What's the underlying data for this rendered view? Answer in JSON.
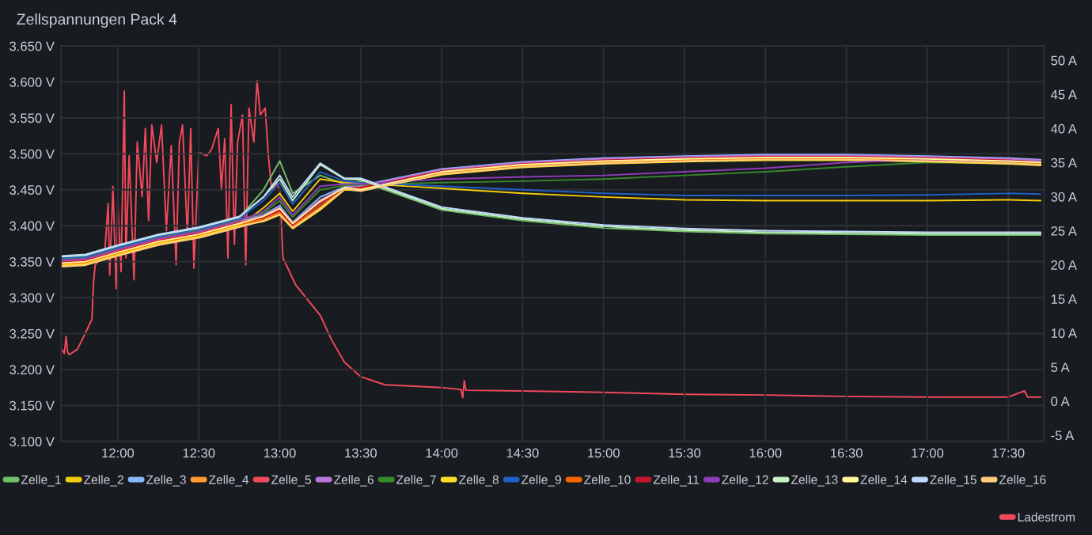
{
  "chart_data": {
    "type": "line",
    "title": "Zellspannungen Pack 4",
    "x": [
      11.65,
      11.8,
      12.0,
      12.25,
      12.5,
      12.75,
      12.9,
      13.0,
      13.08,
      13.25,
      13.4,
      13.5,
      14.0,
      14.5,
      15.0,
      15.5,
      16.0,
      16.5,
      17.0,
      17.5,
      17.7
    ],
    "xlim": [
      11.65,
      17.72
    ],
    "xticks": [
      {
        "value": 12,
        "label": "12:00"
      },
      {
        "value": 12.5,
        "label": "12:30"
      },
      {
        "value": 13,
        "label": "13:00"
      },
      {
        "value": 13.5,
        "label": "13:30"
      },
      {
        "value": 14,
        "label": "14:00"
      },
      {
        "value": 14.5,
        "label": "14:30"
      },
      {
        "value": 15,
        "label": "15:00"
      },
      {
        "value": 15.5,
        "label": "15:30"
      },
      {
        "value": 16,
        "label": "16:00"
      },
      {
        "value": 16.5,
        "label": "16:30"
      },
      {
        "value": 17,
        "label": "17:00"
      },
      {
        "value": 17.5,
        "label": "17:30"
      }
    ],
    "ylim": [
      3.1,
      3.65
    ],
    "yticks": [
      {
        "value": 3.1,
        "label": "3.100 V"
      },
      {
        "value": 3.15,
        "label": "3.150 V"
      },
      {
        "value": 3.2,
        "label": "3.200 V"
      },
      {
        "value": 3.25,
        "label": "3.250 V"
      },
      {
        "value": 3.3,
        "label": "3.300 V"
      },
      {
        "value": 3.35,
        "label": "3.350 V"
      },
      {
        "value": 3.4,
        "label": "3.400 V"
      },
      {
        "value": 3.45,
        "label": "3.450 V"
      },
      {
        "value": 3.5,
        "label": "3.500 V"
      },
      {
        "value": 3.55,
        "label": "3.550 V"
      },
      {
        "value": 3.6,
        "label": "3.600 V"
      },
      {
        "value": 3.65,
        "label": "3.650 V"
      }
    ],
    "y2lim": [
      -5.9,
      52.1
    ],
    "y2ticks": [
      {
        "value": -5,
        "label": "-5 A"
      },
      {
        "value": 0,
        "label": "0 A"
      },
      {
        "value": 5,
        "label": "5 A"
      },
      {
        "value": 10,
        "label": "10 A"
      },
      {
        "value": 15,
        "label": "15 A"
      },
      {
        "value": 20,
        "label": "20 A"
      },
      {
        "value": 25,
        "label": "25 A"
      },
      {
        "value": 30,
        "label": "30 A"
      },
      {
        "value": 35,
        "label": "35 A"
      },
      {
        "value": 40,
        "label": "40 A"
      },
      {
        "value": 45,
        "label": "45 A"
      },
      {
        "value": 50,
        "label": "50 A"
      }
    ],
    "grid": true,
    "legend": "bottom",
    "series": [
      {
        "name": "Zelle_1",
        "color": "#73bf69",
        "values": [
          3.356,
          3.358,
          3.371,
          3.386,
          3.396,
          3.411,
          3.45,
          3.49,
          3.445,
          3.47,
          3.458,
          3.462,
          3.422,
          3.407,
          3.397,
          3.392,
          3.389,
          3.388,
          3.387,
          3.387,
          3.387
        ]
      },
      {
        "name": "Zelle_2",
        "color": "#f2cc0c",
        "values": [
          3.344,
          3.346,
          3.359,
          3.374,
          3.384,
          3.399,
          3.425,
          3.445,
          3.42,
          3.465,
          3.46,
          3.459,
          3.452,
          3.445,
          3.44,
          3.436,
          3.435,
          3.435,
          3.435,
          3.436,
          3.435
        ]
      },
      {
        "name": "Zelle_3",
        "color": "#8ab8ff",
        "values": [
          3.351,
          3.353,
          3.366,
          3.381,
          3.391,
          3.406,
          3.415,
          3.428,
          3.405,
          3.44,
          3.454,
          3.456,
          3.479,
          3.489,
          3.494,
          3.497,
          3.499,
          3.499,
          3.497,
          3.494,
          3.492
        ]
      },
      {
        "name": "Zelle_4",
        "color": "#ff9830",
        "values": [
          3.346,
          3.348,
          3.361,
          3.376,
          3.386,
          3.401,
          3.41,
          3.42,
          3.4,
          3.43,
          3.452,
          3.452,
          3.473,
          3.483,
          3.488,
          3.491,
          3.493,
          3.493,
          3.491,
          3.488,
          3.486
        ]
      },
      {
        "name": "Zelle_5",
        "color": "#f2495c",
        "values": [
          3.35,
          3.352,
          3.365,
          3.38,
          3.39,
          3.405,
          3.412,
          3.422,
          3.402,
          3.432,
          3.452,
          3.454,
          3.477,
          3.487,
          3.492,
          3.495,
          3.497,
          3.497,
          3.495,
          3.492,
          3.49
        ]
      },
      {
        "name": "Zelle_6",
        "color": "#b877d9",
        "values": [
          3.354,
          3.356,
          3.369,
          3.384,
          3.394,
          3.409,
          3.414,
          3.426,
          3.404,
          3.436,
          3.453,
          3.455,
          3.478,
          3.488,
          3.493,
          3.496,
          3.498,
          3.498,
          3.496,
          3.493,
          3.491
        ]
      },
      {
        "name": "Zelle_7",
        "color": "#37872d",
        "values": [
          3.353,
          3.355,
          3.368,
          3.383,
          3.393,
          3.408,
          3.418,
          3.435,
          3.412,
          3.45,
          3.456,
          3.457,
          3.46,
          3.462,
          3.465,
          3.47,
          3.475,
          3.482,
          3.488,
          3.487,
          3.486
        ]
      },
      {
        "name": "Zelle_8",
        "color": "#fade2a",
        "values": [
          3.345,
          3.347,
          3.36,
          3.375,
          3.385,
          3.4,
          3.406,
          3.415,
          3.396,
          3.422,
          3.45,
          3.449,
          3.471,
          3.481,
          3.486,
          3.489,
          3.491,
          3.491,
          3.489,
          3.486,
          3.484
        ]
      },
      {
        "name": "Zelle_9",
        "color": "#1f60c4",
        "values": [
          3.355,
          3.357,
          3.37,
          3.385,
          3.395,
          3.41,
          3.435,
          3.46,
          3.43,
          3.475,
          3.462,
          3.46,
          3.455,
          3.45,
          3.445,
          3.442,
          3.442,
          3.442,
          3.443,
          3.445,
          3.444
        ]
      },
      {
        "name": "Zelle_10",
        "color": "#fa6400",
        "values": [
          3.347,
          3.349,
          3.362,
          3.377,
          3.387,
          3.402,
          3.408,
          3.418,
          3.398,
          3.426,
          3.451,
          3.451,
          3.474,
          3.484,
          3.489,
          3.492,
          3.494,
          3.494,
          3.492,
          3.489,
          3.487
        ]
      },
      {
        "name": "Zelle_11",
        "color": "#c4162a",
        "values": [
          3.349,
          3.351,
          3.364,
          3.379,
          3.389,
          3.404,
          3.411,
          3.421,
          3.401,
          3.431,
          3.452,
          3.453,
          3.476,
          3.486,
          3.491,
          3.494,
          3.496,
          3.496,
          3.494,
          3.491,
          3.489
        ]
      },
      {
        "name": "Zelle_12",
        "color": "#8f3bb8",
        "values": [
          3.352,
          3.354,
          3.367,
          3.382,
          3.392,
          3.407,
          3.42,
          3.44,
          3.415,
          3.455,
          3.458,
          3.458,
          3.465,
          3.468,
          3.47,
          3.475,
          3.48,
          3.488,
          3.492,
          3.49,
          3.489
        ]
      },
      {
        "name": "Zelle_13",
        "color": "#c8f2c2",
        "values": [
          3.357,
          3.359,
          3.372,
          3.387,
          3.397,
          3.412,
          3.44,
          3.465,
          3.435,
          3.485,
          3.465,
          3.464,
          3.424,
          3.409,
          3.399,
          3.394,
          3.391,
          3.39,
          3.389,
          3.389,
          3.389
        ]
      },
      {
        "name": "Zelle_14",
        "color": "#fff899",
        "values": [
          3.348,
          3.35,
          3.363,
          3.378,
          3.388,
          3.403,
          3.413,
          3.424,
          3.403,
          3.434,
          3.453,
          3.45,
          3.475,
          3.485,
          3.49,
          3.493,
          3.495,
          3.495,
          3.493,
          3.49,
          3.488
        ]
      },
      {
        "name": "Zelle_15",
        "color": "#c0d8ff",
        "values": [
          3.358,
          3.36,
          3.373,
          3.388,
          3.398,
          3.413,
          3.44,
          3.47,
          3.44,
          3.487,
          3.466,
          3.466,
          3.426,
          3.411,
          3.401,
          3.396,
          3.393,
          3.392,
          3.391,
          3.391,
          3.391
        ]
      },
      {
        "name": "Zelle_16",
        "color": "#ffcb7d",
        "values": [
          3.343,
          3.345,
          3.358,
          3.373,
          3.383,
          3.398,
          3.407,
          3.416,
          3.397,
          3.424,
          3.451,
          3.448,
          3.472,
          3.482,
          3.487,
          3.49,
          3.492,
          3.492,
          3.49,
          3.487,
          3.485
        ]
      },
      {
        "name": "Ladestrom",
        "color": "#f2495c",
        "axis": "y2",
        "x": [
          11.65,
          11.67,
          11.68,
          11.69,
          11.7,
          11.75,
          11.8,
          11.84,
          11.85,
          11.86,
          11.88,
          11.92,
          11.94,
          11.95,
          11.97,
          11.99,
          12.0,
          12.02,
          12.04,
          12.05,
          12.07,
          12.1,
          12.12,
          12.15,
          12.17,
          12.19,
          12.21,
          12.24,
          12.27,
          12.3,
          12.33,
          12.36,
          12.38,
          12.4,
          12.43,
          12.45,
          12.47,
          12.5,
          12.55,
          12.58,
          12.62,
          12.64,
          12.66,
          12.68,
          12.7,
          12.72,
          12.74,
          12.77,
          12.79,
          12.81,
          12.84,
          12.86,
          12.88,
          12.91,
          12.93,
          12.95,
          12.98,
          13.0,
          13.02,
          13.1,
          13.25,
          13.32,
          13.4,
          13.5,
          13.65,
          14.0,
          14.12,
          14.13,
          14.14,
          14.15,
          14.5,
          15.0,
          15.5,
          16.0,
          16.5,
          17.0,
          17.5,
          17.6,
          17.62,
          17.7
        ],
        "values": [
          7.7,
          7.0,
          9.5,
          7.2,
          6.8,
          7.6,
          10.0,
          12.0,
          17.5,
          20.0,
          20.5,
          22.0,
          29.0,
          18.5,
          31.5,
          16.5,
          29.0,
          19.0,
          45.5,
          21.0,
          36.0,
          17.8,
          38.0,
          30.0,
          40.0,
          26.5,
          40.5,
          35.0,
          40.5,
          25.0,
          37.5,
          20.0,
          38.0,
          40.5,
          24.0,
          40.0,
          19.5,
          36.5,
          36.0,
          37.0,
          40.0,
          31.0,
          38.5,
          21.0,
          43.5,
          23.0,
          38.0,
          42.0,
          20.0,
          43.0,
          38.0,
          47.0,
          42.0,
          43.0,
          36.0,
          31.0,
          32.0,
          31.0,
          21.0,
          17.0,
          12.6,
          9.0,
          5.7,
          3.6,
          2.4,
          2.0,
          1.7,
          0.5,
          3.0,
          1.6,
          1.5,
          1.3,
          1.0,
          0.9,
          0.7,
          0.6,
          0.6,
          1.5,
          0.6,
          0.6
        ]
      }
    ]
  }
}
